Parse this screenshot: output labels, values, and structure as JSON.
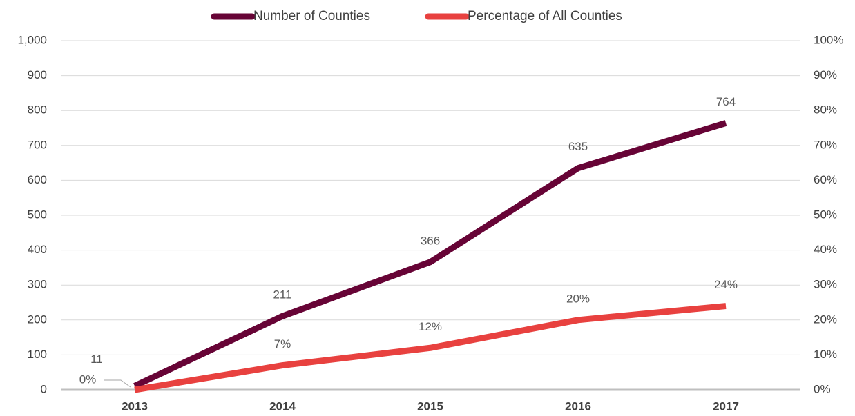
{
  "chart_data": {
    "type": "line",
    "categories": [
      "2013",
      "2014",
      "2015",
      "2016",
      "2017"
    ],
    "series": [
      {
        "name": "Number of Counties",
        "color": "#670436",
        "values": [
          11,
          211,
          366,
          635,
          764
        ]
      },
      {
        "name": "Percentage of All Counties",
        "color": "#e8413f",
        "axis": "y2",
        "values": [
          0,
          7,
          12,
          20,
          24
        ],
        "value_labels": [
          "0%",
          "7%",
          "12%",
          "20%",
          "24%"
        ]
      }
    ],
    "ylim": [
      0,
      1000
    ],
    "yticks": [
      0,
      100,
      200,
      300,
      400,
      500,
      600,
      700,
      800,
      900,
      {
        "value": 1000,
        "label": "1,000"
      }
    ],
    "y2lim": [
      0,
      100
    ],
    "y2ticks": [
      {
        "value": 0,
        "label": "0%"
      },
      {
        "value": 10,
        "label": "10%"
      },
      {
        "value": 20,
        "label": "20%"
      },
      {
        "value": 30,
        "label": "30%"
      },
      {
        "value": 40,
        "label": "40%"
      },
      {
        "value": 50,
        "label": "50%"
      },
      {
        "value": 60,
        "label": "60%"
      },
      {
        "value": 70,
        "label": "70%"
      },
      {
        "value": 80,
        "label": "80%"
      },
      {
        "value": 90,
        "label": "90%"
      },
      {
        "value": 100,
        "label": "100%"
      }
    ],
    "grid": true,
    "legend": "top"
  }
}
